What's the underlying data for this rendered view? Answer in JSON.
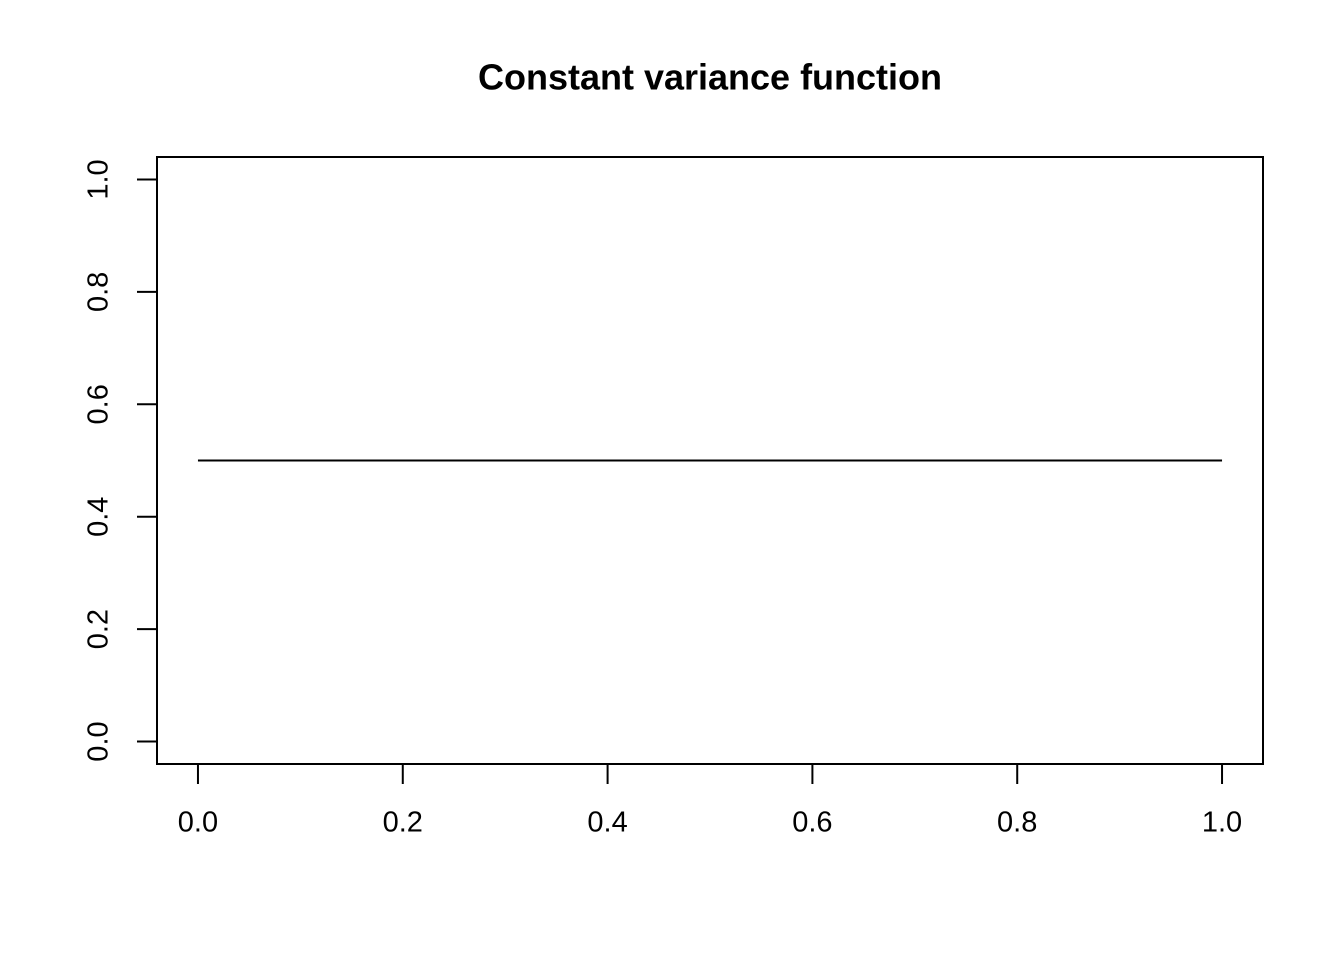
{
  "chart_data": {
    "type": "line",
    "title": "Constant variance function",
    "x": [
      0,
      1
    ],
    "values": [
      0.5,
      0.5
    ],
    "color": "#000000",
    "xlim": [
      -0.04,
      1.04
    ],
    "ylim": [
      -0.04,
      1.04
    ],
    "xticks": [
      {
        "value": 0,
        "label": "0.0"
      },
      0.2,
      0.4,
      0.6,
      0.8,
      {
        "value": 1,
        "label": "1.0"
      }
    ],
    "yticks": [
      {
        "value": 0,
        "label": "0.0"
      },
      0.2,
      0.4,
      0.6,
      0.8,
      {
        "value": 1,
        "label": "1.0"
      }
    ]
  }
}
